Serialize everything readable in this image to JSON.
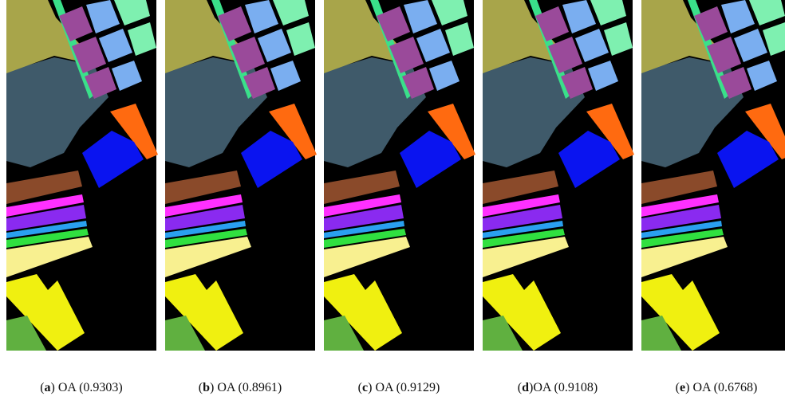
{
  "panels": [
    {
      "open": "(",
      "letter": "a",
      "rest": ") OA (0.9303)"
    },
    {
      "open": "(",
      "letter": "b",
      "rest": ") OA (0.8961)"
    },
    {
      "open": "(",
      "letter": "c",
      "rest": ") OA (0.9129)"
    },
    {
      "open": "(",
      "letter": "d",
      "rest": ")OA (0.9108)"
    },
    {
      "open": "(",
      "letter": "e",
      "rest": ") OA (0.6768)"
    }
  ]
}
